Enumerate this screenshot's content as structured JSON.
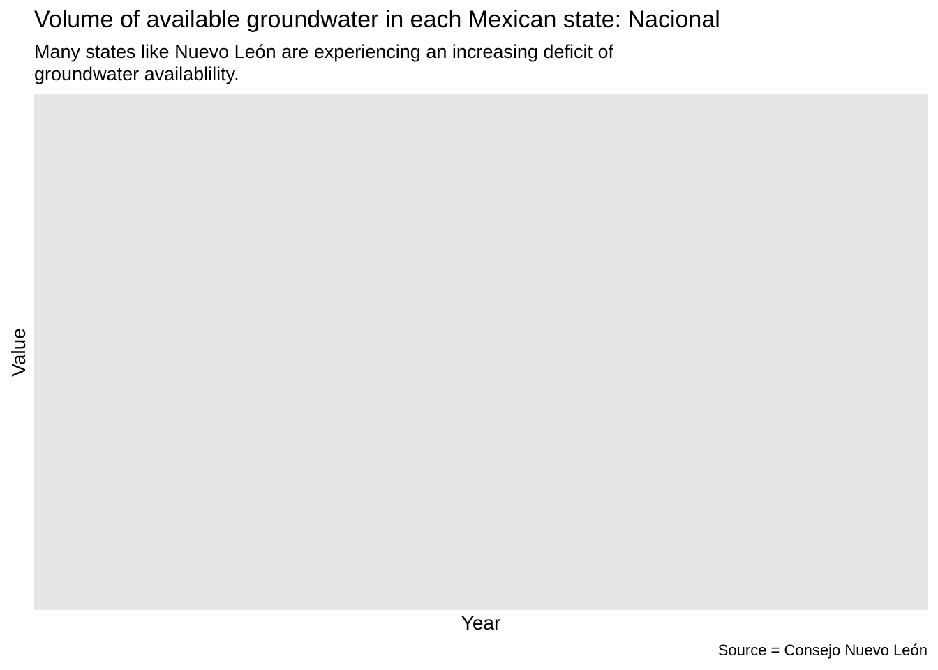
{
  "chart_data": {
    "type": "line",
    "title": "Volume of available groundwater in each Mexican state: Nacional",
    "subtitle": "Many states like Nuevo León are experiencing an increasing deficit of groundwater availablility.",
    "xlabel": "Year",
    "ylabel": "Value",
    "caption": "Source = Consejo Nuevo León",
    "series": [],
    "grid": false,
    "panel_color": "#e5e5e5"
  }
}
